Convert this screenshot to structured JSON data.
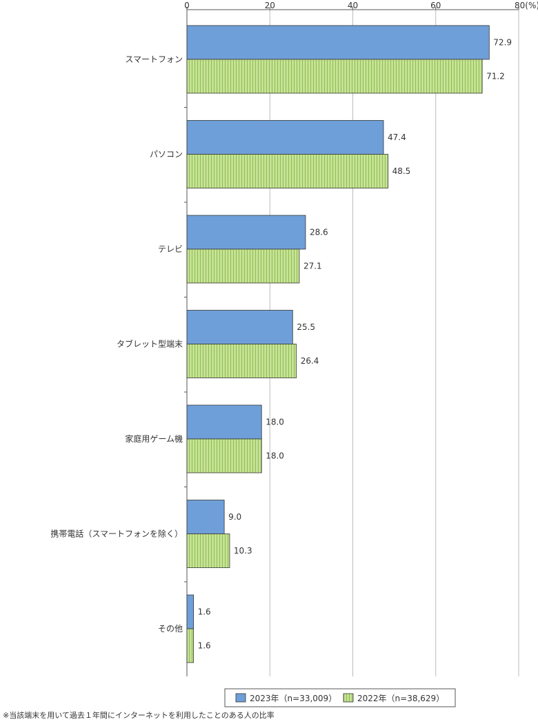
{
  "chart_data": {
    "type": "bar",
    "orientation": "horizontal",
    "categories": [
      "スマートフォン",
      "パソコン",
      "テレビ",
      "タブレット型端末",
      "家庭用ゲーム機",
      "携帯電話（スマートフォンを除く）",
      "その他"
    ],
    "series": [
      {
        "name": "2023年（n=33,009）",
        "values": [
          72.9,
          47.4,
          28.6,
          25.5,
          18.0,
          9.0,
          1.6
        ],
        "labels": [
          "72.9",
          "47.4",
          "28.6",
          "25.5",
          "18.0",
          "9.0",
          "1.6"
        ],
        "color": "#6f9fd8"
      },
      {
        "name": "2022年（n=38,629）",
        "values": [
          71.2,
          48.5,
          27.1,
          26.4,
          18.0,
          10.3,
          1.6
        ],
        "labels": [
          "71.2",
          "48.5",
          "27.1",
          "26.4",
          "18.0",
          "10.3",
          "1.6"
        ],
        "color": "#c6e296"
      }
    ],
    "xlim": [
      0,
      80
    ],
    "ticks": [
      0,
      20,
      40,
      60,
      80
    ],
    "tick_labels": [
      "0",
      "20",
      "40",
      "60",
      "80(%)"
    ],
    "grid": true,
    "legend_position": "bottom-right"
  },
  "footnote": "※当該端末を用いて過去１年間にインターネットを利用したことのある人の比率"
}
